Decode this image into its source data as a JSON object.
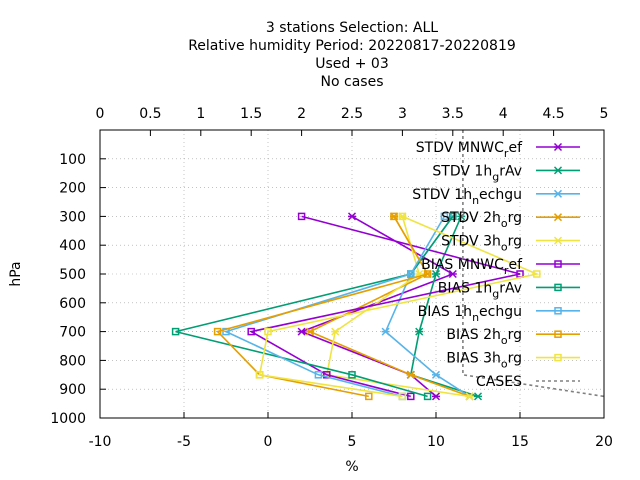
{
  "chart_data": {
    "type": "line",
    "title_lines": [
      "3 stations Selection: ALL",
      "Relative humidity  Period: 20220817-20220819",
      "Used   + 03",
      "No cases"
    ],
    "xlabel": "%",
    "ylabel": "hPa",
    "xlim": [
      -10,
      20
    ],
    "ylim": [
      1000,
      0
    ],
    "x_ticks": [
      "-10",
      "-5",
      "0",
      "5",
      "10",
      "15",
      "20"
    ],
    "y_ticks": [
      "100",
      "200",
      "300",
      "400",
      "500",
      "600",
      "700",
      "800",
      "900",
      "1000"
    ],
    "x2lim": [
      0,
      5
    ],
    "x2_ticks": [
      "0",
      "0.5",
      "1",
      "1.5",
      "2",
      "2.5",
      "3",
      "3.5",
      "4",
      "4.5",
      "5"
    ],
    "grid": true,
    "legend_position": "top-right",
    "series": [
      {
        "name": "STDV MNWC_ref",
        "label_main": [
          "STDV MNWC",
          "ef"
        ],
        "label_sub": "r",
        "color": "#9400d3",
        "marker": "x",
        "points": [
          [
            5,
            300
          ],
          [
            11,
            500
          ],
          [
            2,
            700
          ],
          [
            8.5,
            850
          ],
          [
            10,
            925
          ]
        ]
      },
      {
        "name": "STDV 1h_grAv",
        "label_main": [
          "STDV 1h",
          "rAv"
        ],
        "label_sub": "g",
        "color": "#009e73",
        "marker": "x",
        "points": [
          [
            11.5,
            300
          ],
          [
            10,
            500
          ],
          [
            9,
            700
          ],
          [
            8.5,
            850
          ],
          [
            12.5,
            925
          ]
        ]
      },
      {
        "name": "STDV 1h_nechgu",
        "label_main": [
          "STDV 1h",
          "echgu"
        ],
        "label_sub": "n",
        "color": "#56b4e9",
        "marker": "x",
        "points": [
          [
            11,
            300
          ],
          [
            8.5,
            500
          ],
          [
            7,
            700
          ],
          [
            10,
            850
          ],
          [
            12,
            925
          ]
        ]
      },
      {
        "name": "STDV 2h_org",
        "label_main": [
          "STDV 2h",
          "rg"
        ],
        "label_sub": "o",
        "color": "#e69f00",
        "marker": "x",
        "points": [
          [
            7.5,
            300
          ],
          [
            9.5,
            500
          ],
          [
            2.5,
            700
          ],
          [
            8.5,
            850
          ],
          [
            12,
            925
          ]
        ]
      },
      {
        "name": "STDV 3h_org",
        "label_main": [
          "STDV 3h",
          "rg"
        ],
        "label_sub": "o",
        "color": "#f0e442",
        "marker": "x",
        "points": [
          [
            8,
            300
          ],
          [
            9,
            500
          ],
          [
            4,
            700
          ],
          [
            3.5,
            850
          ],
          [
            12,
            925
          ]
        ]
      },
      {
        "name": "BIAS MNWC_ref",
        "label_main": [
          "BIAS MNWC",
          "ef"
        ],
        "label_sub": "r",
        "color": "#9400d3",
        "marker": "s",
        "points": [
          [
            2,
            300
          ],
          [
            15,
            500
          ],
          [
            -1,
            700
          ],
          [
            3.5,
            850
          ],
          [
            8.5,
            925
          ]
        ]
      },
      {
        "name": "BIAS 1h_grAv",
        "label_main": [
          "BIAS 1h",
          "rAv"
        ],
        "label_sub": "g",
        "color": "#009e73",
        "marker": "s",
        "points": [
          [
            11,
            300
          ],
          [
            8.5,
            500
          ],
          [
            -5.5,
            700
          ],
          [
            5,
            850
          ],
          [
            9.5,
            925
          ]
        ]
      },
      {
        "name": "BIAS 1h_nechgu",
        "label_main": [
          "BIAS 1h",
          "echgu"
        ],
        "label_sub": "n",
        "color": "#56b4e9",
        "marker": "s",
        "points": [
          [
            10.5,
            300
          ],
          [
            8.5,
            500
          ],
          [
            -2.5,
            700
          ],
          [
            3,
            850
          ],
          [
            8,
            925
          ]
        ]
      },
      {
        "name": "BIAS 2h_org",
        "label_main": [
          "BIAS 2h",
          "rg"
        ],
        "label_sub": "o",
        "color": "#e69f00",
        "marker": "s",
        "points": [
          [
            7.5,
            300
          ],
          [
            9.5,
            500
          ],
          [
            -3,
            700
          ],
          [
            -0.5,
            850
          ],
          [
            6,
            925
          ]
        ]
      },
      {
        "name": "BIAS 3h_org",
        "label_main": [
          "BIAS 3h",
          "rg"
        ],
        "label_sub": "o",
        "color": "#f0e442",
        "marker": "s",
        "points": [
          [
            8,
            300
          ],
          [
            16,
            500
          ],
          [
            0,
            700
          ],
          [
            -0.5,
            850
          ],
          [
            8,
            925
          ]
        ]
      },
      {
        "name": "CASES",
        "label_main": [
          "CASES",
          ""
        ],
        "label_sub": "",
        "color": "#808080",
        "marker": "none",
        "dash": true,
        "axis": "x2",
        "points": [
          [
            3.6,
            0
          ],
          [
            3.6,
            850
          ],
          [
            5,
            925
          ]
        ]
      }
    ]
  }
}
